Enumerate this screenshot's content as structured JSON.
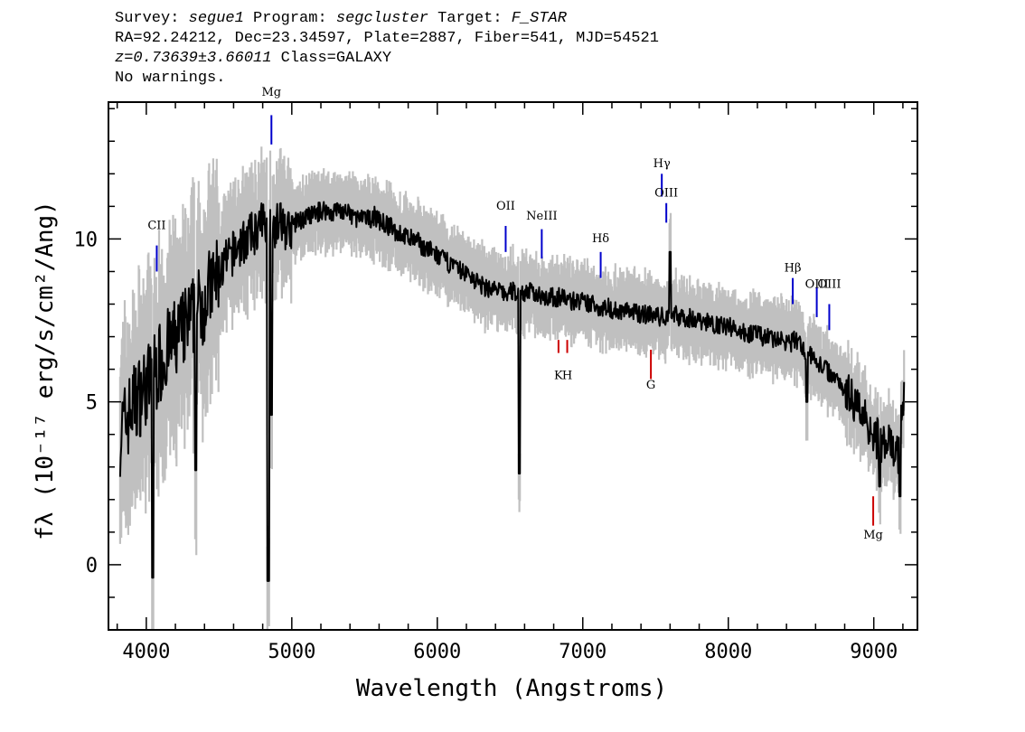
{
  "header": {
    "line1": {
      "survey_label": "Survey: ",
      "survey": "segue1",
      "program_label": " Program: ",
      "program": "segcluster",
      "target_label": " Target: ",
      "target": "F_STAR"
    },
    "line2": "RA=92.24212, Dec=23.34597, Plate=2887, Fiber=541, MJD=54521",
    "line3": {
      "z": "z=0.73639±3.66011",
      "cls": " Class=GALAXY"
    },
    "line4": "No warnings."
  },
  "chart_data": {
    "type": "line",
    "xlabel": "Wavelength (Angstroms)",
    "ylabel": "fλ (10⁻¹⁷ erg/s/cm²/Ang)",
    "xlim": [
      3740,
      9300
    ],
    "ylim": [
      -2,
      14.2
    ],
    "xticks": [
      4000,
      5000,
      6000,
      7000,
      8000,
      9000
    ],
    "yticks": [
      0,
      5,
      10
    ],
    "xticks_minor_step": 200,
    "yticks_minor_step": 1,
    "grid": false,
    "colors": {
      "flux": "#000000",
      "error_band": "#c0c0c0",
      "emission": "#0000cc",
      "absorption": "#cc0000"
    },
    "series": [
      {
        "x": [
          3820,
          3870,
          3920,
          3970,
          4020,
          4070,
          4120,
          4170,
          4220,
          4270,
          4320,
          4370,
          4420,
          4470,
          4520,
          4570,
          4620,
          4670,
          4720,
          4770,
          4820,
          4870,
          4920,
          4970,
          5020,
          5070,
          5120,
          5170,
          5220,
          5270,
          5320,
          5370,
          5420,
          5470,
          5520,
          5570,
          5620,
          5670,
          5720,
          5770,
          5820,
          5870,
          5920,
          5970,
          6020,
          6070,
          6120,
          6170,
          6220,
          6270,
          6320,
          6370,
          6420,
          6470,
          6520,
          6570,
          6620,
          6670,
          6720,
          6770,
          6820,
          6870,
          6920,
          6970,
          7020,
          7070,
          7120,
          7170,
          7220,
          7270,
          7320,
          7370,
          7420,
          7470,
          7520,
          7570,
          7620,
          7670,
          7720,
          7770,
          7820,
          7870,
          7920,
          7970,
          8020,
          8070,
          8120,
          8170,
          8220,
          8270,
          8320,
          8370,
          8420,
          8470,
          8520,
          8570,
          8620,
          8670,
          8720,
          8770,
          8820,
          8870,
          8920,
          8970,
          9020,
          9070,
          9120,
          9170,
          9210
        ],
        "values": [
          4.0,
          4.5,
          5.0,
          5.3,
          5.6,
          6.0,
          6.4,
          6.7,
          7.0,
          7.3,
          7.6,
          7.9,
          8.3,
          8.7,
          9.1,
          9.4,
          9.7,
          9.9,
          10.1,
          10.3,
          10.6,
          10.4,
          10.5,
          10.3,
          10.5,
          10.6,
          10.7,
          10.8,
          10.9,
          10.8,
          10.9,
          10.8,
          10.7,
          10.6,
          10.6,
          10.7,
          10.5,
          10.4,
          10.2,
          10.1,
          10.0,
          9.9,
          9.7,
          9.6,
          9.4,
          9.3,
          9.1,
          9.0,
          8.9,
          8.7,
          8.5,
          8.5,
          8.4,
          8.3,
          8.4,
          8.3,
          8.4,
          8.3,
          8.3,
          8.2,
          8.2,
          8.2,
          8.1,
          8.1,
          8.0,
          8.0,
          7.9,
          7.9,
          7.8,
          7.8,
          7.8,
          7.7,
          7.7,
          7.7,
          7.6,
          7.6,
          7.7,
          7.6,
          7.6,
          7.5,
          7.5,
          7.4,
          7.4,
          7.3,
          7.3,
          7.2,
          7.1,
          7.1,
          7.0,
          7.0,
          6.9,
          6.9,
          6.8,
          6.9,
          6.6,
          6.4,
          6.2,
          6.0,
          5.8,
          5.6,
          5.3,
          5.0,
          4.7,
          4.3,
          3.9,
          3.7,
          3.6,
          3.4,
          5.5
        ]
      }
    ],
    "features": [
      {
        "x": 4838,
        "y": -0.5
      },
      {
        "x": 4861,
        "y": 4.6
      },
      {
        "x": 4045,
        "y": -0.4
      },
      {
        "x": 4340,
        "y": 2.9
      },
      {
        "x": 6563,
        "y": 2.8
      },
      {
        "x": 7600,
        "y": 9.6
      },
      {
        "x": 8540,
        "y": 5.0
      },
      {
        "x": 9040,
        "y": 2.4
      },
      {
        "x": 9180,
        "y": 2.1
      }
    ],
    "lines": [
      {
        "label": "CII",
        "x": 4072,
        "kind": "emission",
        "y0": 9.0,
        "y1": 9.8,
        "label_y": 10.3
      },
      {
        "label": "Mg",
        "x": 4860,
        "kind": "emission",
        "y0": 12.9,
        "y1": 13.8,
        "label_y": 14.4
      },
      {
        "label": "OII",
        "x": 6470,
        "kind": "emission",
        "y0": 9.6,
        "y1": 10.4,
        "label_y": 10.9
      },
      {
        "label": "NeIII",
        "x": 6718,
        "kind": "emission",
        "y0": 9.4,
        "y1": 10.3,
        "label_y": 10.6
      },
      {
        "label": "Hδ",
        "x": 7123,
        "kind": "emission",
        "y0": 8.8,
        "y1": 9.6,
        "label_y": 9.9
      },
      {
        "label": "Hγ",
        "x": 7543,
        "kind": "emission",
        "y0": 11.3,
        "y1": 12.0,
        "label_y": 12.2
      },
      {
        "label": "OIII",
        "x": 7574,
        "kind": "emission",
        "y0": 10.5,
        "y1": 11.1,
        "label_y": 11.3
      },
      {
        "label": "Hβ",
        "x": 8443,
        "kind": "emission",
        "y0": 8.0,
        "y1": 8.8,
        "label_y": 9.0
      },
      {
        "label": "OIII",
        "x": 8608,
        "kind": "emission",
        "y0": 7.6,
        "y1": 8.5,
        "label_y": 8.5
      },
      {
        "label": "OIII",
        "x": 8694,
        "kind": "emission",
        "y0": 7.2,
        "y1": 8.0,
        "label_y": 8.5
      },
      {
        "label": "K",
        "x": 6833,
        "kind": "absorption",
        "y0": 6.5,
        "y1": 6.9,
        "label_y": 5.7
      },
      {
        "label": "H",
        "x": 6893,
        "kind": "absorption",
        "y0": 6.5,
        "y1": 6.9,
        "label_y": 5.7
      },
      {
        "label": "G",
        "x": 7468,
        "kind": "absorption",
        "y0": 5.7,
        "y1": 6.6,
        "label_y": 5.4
      },
      {
        "label": "Mg",
        "x": 8996,
        "kind": "absorption",
        "y0": 1.2,
        "y1": 2.1,
        "label_y": 0.8
      }
    ]
  }
}
